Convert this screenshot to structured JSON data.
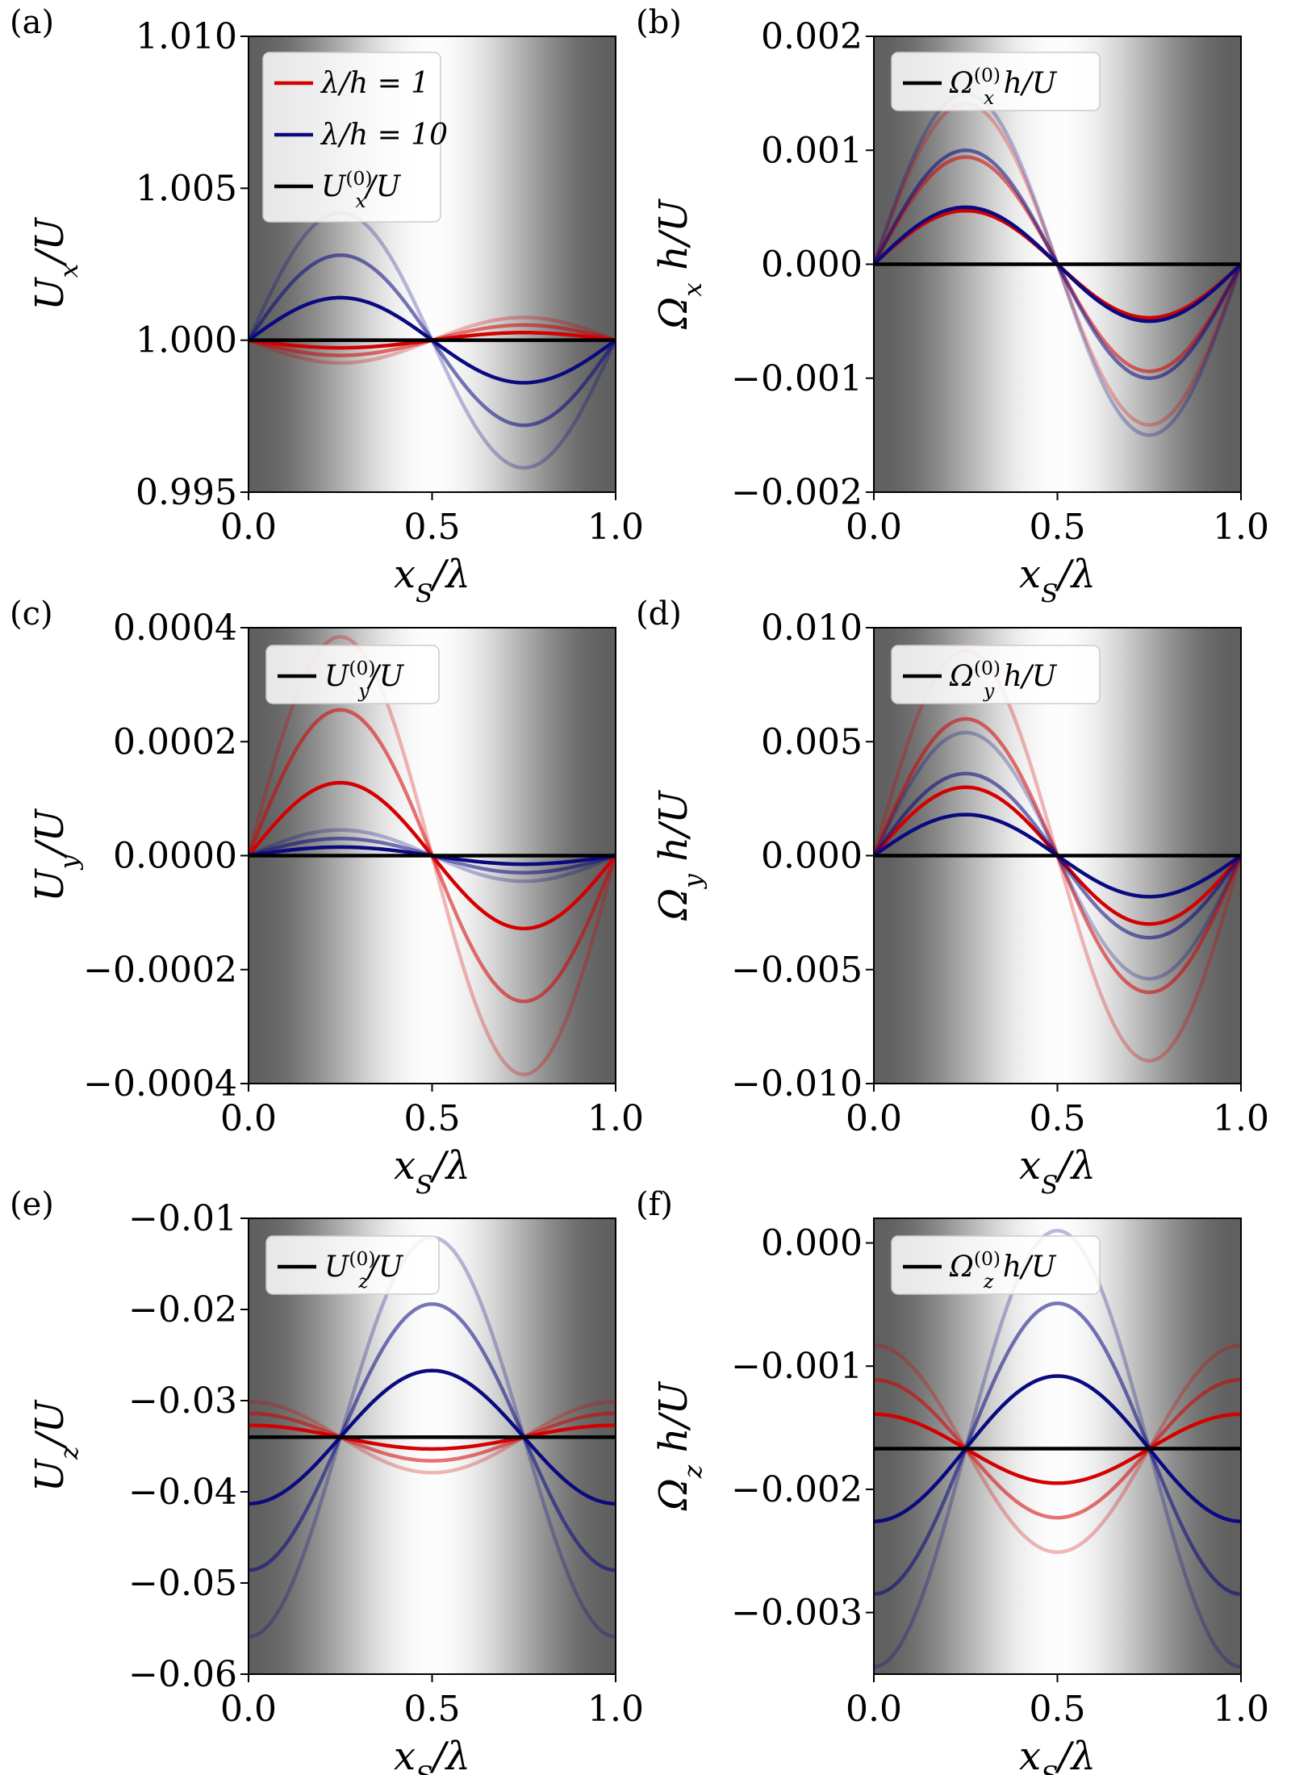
{
  "figure": {
    "panel_count": 6,
    "shared_xlabel": "x_S/λ",
    "shared_xticks": [
      0.0,
      0.5,
      1.0
    ]
  },
  "series_styles": {
    "red": "#d40000",
    "blue": "#0a0a80",
    "black": "#000000",
    "opacities": [
      1.0,
      0.55,
      0.28
    ]
  },
  "chart_data": [
    {
      "id": "a",
      "type": "line",
      "panel_label": "(a)",
      "xlabel": "x_S/λ",
      "ylabel": "U_x/U",
      "xlim": [
        0,
        1
      ],
      "ylim": [
        0.995,
        1.01
      ],
      "xticks": [
        "0.0",
        "0.5",
        "1.0"
      ],
      "yticks": [
        "0.995",
        "1.000",
        "1.005",
        "1.010"
      ],
      "baseline": 1.0,
      "legend": [
        {
          "label": "λ/h = 1",
          "color": "#d40000"
        },
        {
          "label": "λ/h = 10",
          "color": "#0a0a80"
        },
        {
          "label": "U_x^(0)/U",
          "color": "#000000"
        }
      ],
      "series": [
        {
          "name": "λ/h = 1",
          "color": "#d40000",
          "shape": "sin",
          "amplitudes": [
            -0.00025,
            -0.0005,
            -0.00075
          ]
        },
        {
          "name": "λ/h = 10",
          "color": "#0a0a80",
          "shape": "sin",
          "amplitudes": [
            0.0014,
            0.0028,
            0.0042
          ]
        },
        {
          "name": "U_x^(0)/U",
          "color": "#000000",
          "shape": "const",
          "value": 1.0
        }
      ]
    },
    {
      "id": "b",
      "type": "line",
      "panel_label": "(b)",
      "xlabel": "x_S/λ",
      "ylabel": "Ω_x h/U",
      "xlim": [
        0,
        1
      ],
      "ylim": [
        -0.002,
        0.002
      ],
      "xticks": [
        "0.0",
        "0.5",
        "1.0"
      ],
      "yticks": [
        "−0.002",
        "−0.001",
        "0.000",
        "0.001",
        "0.002"
      ],
      "baseline": 0.0,
      "legend": [
        {
          "label": "Ω_x^(0) h/U",
          "color": "#000000"
        }
      ],
      "series": [
        {
          "name": "λ/h = 1",
          "color": "#d40000",
          "shape": "sin",
          "amplitudes": [
            0.00047,
            0.00094,
            0.00141
          ]
        },
        {
          "name": "λ/h = 10",
          "color": "#0a0a80",
          "shape": "sin",
          "amplitudes": [
            0.0005,
            0.001,
            0.0015
          ]
        },
        {
          "name": "Ω_x^(0) h/U",
          "color": "#000000",
          "shape": "const",
          "value": 0.0
        }
      ]
    },
    {
      "id": "c",
      "type": "line",
      "panel_label": "(c)",
      "xlabel": "x_S/λ",
      "ylabel": "U_y/U",
      "xlim": [
        0,
        1
      ],
      "ylim": [
        -0.0004,
        0.0004
      ],
      "xticks": [
        "0.0",
        "0.5",
        "1.0"
      ],
      "yticks": [
        "−0.0004",
        "−0.0002",
        "0.0000",
        "0.0002",
        "0.0004"
      ],
      "baseline": 0.0,
      "legend": [
        {
          "label": "U_y^(0)/U",
          "color": "#000000"
        }
      ],
      "series": [
        {
          "name": "λ/h = 1",
          "color": "#d40000",
          "shape": "sin",
          "amplitudes": [
            0.000128,
            0.000256,
            0.000384
          ]
        },
        {
          "name": "λ/h = 10",
          "color": "#0a0a80",
          "shape": "sin",
          "amplitudes": [
            1.5e-05,
            3e-05,
            4.5e-05
          ]
        },
        {
          "name": "U_y^(0)/U",
          "color": "#000000",
          "shape": "const",
          "value": 0.0
        }
      ]
    },
    {
      "id": "d",
      "type": "line",
      "panel_label": "(d)",
      "xlabel": "x_S/λ",
      "ylabel": "Ω_y h/U",
      "xlim": [
        0,
        1
      ],
      "ylim": [
        -0.01,
        0.01
      ],
      "xticks": [
        "0.0",
        "0.5",
        "1.0"
      ],
      "yticks": [
        "−0.010",
        "−0.005",
        "0.000",
        "0.005",
        "0.010"
      ],
      "baseline": 0.0,
      "legend": [
        {
          "label": "Ω_y^(0) h/U",
          "color": "#000000"
        }
      ],
      "series": [
        {
          "name": "λ/h = 1",
          "color": "#d40000",
          "shape": "sin",
          "amplitudes": [
            0.003,
            0.006,
            0.009
          ]
        },
        {
          "name": "λ/h = 10",
          "color": "#0a0a80",
          "shape": "sin",
          "amplitudes": [
            0.0018,
            0.0036,
            0.0054
          ]
        },
        {
          "name": "Ω_y^(0) h/U",
          "color": "#000000",
          "shape": "const",
          "value": 0.0
        }
      ]
    },
    {
      "id": "e",
      "type": "line",
      "panel_label": "(e)",
      "xlabel": "x_S/λ",
      "ylabel": "U_z/U",
      "xlim": [
        0,
        1
      ],
      "ylim": [
        -0.06,
        -0.01
      ],
      "xticks": [
        "0.0",
        "0.5",
        "1.0"
      ],
      "yticks": [
        "−0.06",
        "−0.05",
        "−0.04",
        "−0.03",
        "−0.02",
        "−0.01"
      ],
      "baseline": -0.034,
      "legend": [
        {
          "label": "U_z^(0)/U",
          "color": "#000000"
        }
      ],
      "series": [
        {
          "name": "λ/h = 1",
          "color": "#d40000",
          "shape": "cos",
          "amplitudes": [
            0.0013,
            0.0026,
            0.0039
          ]
        },
        {
          "name": "λ/h = 10",
          "color": "#0a0a80",
          "shape": "cos",
          "amplitudes": [
            -0.0073,
            -0.0146,
            -0.0219
          ]
        },
        {
          "name": "U_z^(0)/U",
          "color": "#000000",
          "shape": "const",
          "value": -0.034
        }
      ]
    },
    {
      "id": "f",
      "type": "line",
      "panel_label": "(f)",
      "xlabel": "x_S/λ",
      "ylabel": "Ω_z h/U",
      "xlim": [
        0,
        1
      ],
      "ylim": [
        -0.0035,
        0.0002
      ],
      "xticks": [
        "0.0",
        "0.5",
        "1.0"
      ],
      "yticks": [
        "−0.003",
        "−0.002",
        "−0.001",
        "0.000"
      ],
      "baseline": -0.00167,
      "legend": [
        {
          "label": "Ω_z^(0) h/U",
          "color": "#000000"
        }
      ],
      "series": [
        {
          "name": "λ/h = 1",
          "color": "#d40000",
          "shape": "cos",
          "amplitudes": [
            0.00028,
            0.00056,
            0.00084
          ]
        },
        {
          "name": "λ/h = 10",
          "color": "#0a0a80",
          "shape": "cos",
          "amplitudes": [
            -0.00059,
            -0.00118,
            -0.00177
          ]
        },
        {
          "name": "Ω_z^(0) h/U",
          "color": "#000000",
          "shape": "const",
          "value": -0.00167
        }
      ]
    }
  ]
}
